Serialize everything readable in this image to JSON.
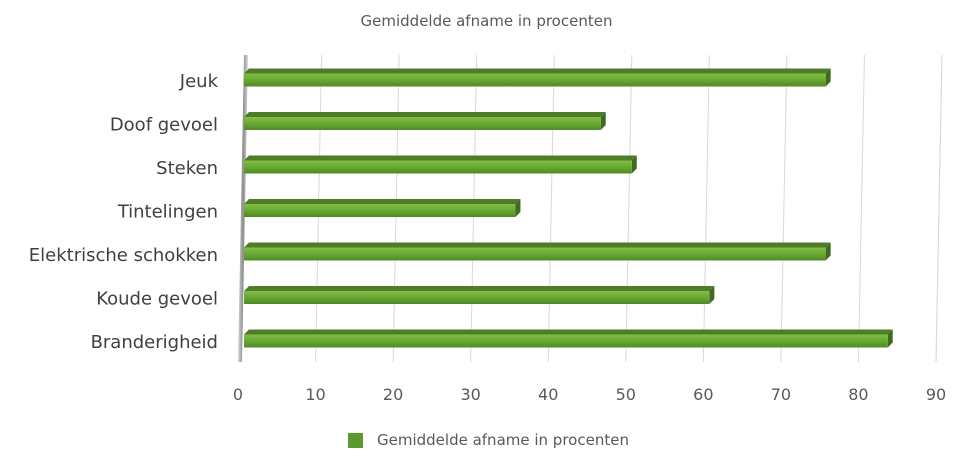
{
  "chart_data": {
    "type": "bar",
    "orientation": "horizontal",
    "title": "Gemiddelde afname in procenten",
    "categories": [
      "Jeuk",
      "Doof gevoel",
      "Steken",
      "Tintelingen",
      "Elektrische schokken",
      "Koude gevoel",
      "Branderigheid"
    ],
    "series": [
      {
        "name": "Gemiddelde afname in procenten",
        "values": [
          75,
          46,
          50,
          35,
          75,
          60,
          83
        ],
        "color": "#5b9a2e"
      }
    ],
    "xlim": [
      0,
      90
    ],
    "xticks": [
      0,
      10,
      20,
      30,
      40,
      50,
      60,
      70,
      80,
      90
    ],
    "grid": true,
    "legend_position": "bottom"
  }
}
